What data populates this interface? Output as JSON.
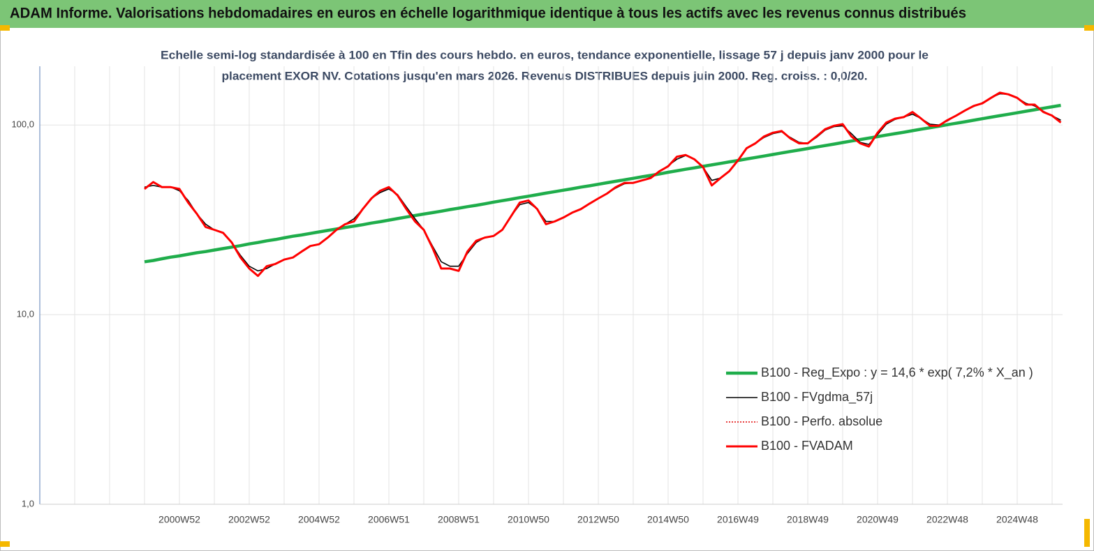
{
  "chart_data": {
    "type": "line",
    "title": "ADAM Informe. Valorisations hebdomadaires en euros en échelle logarithmique identique à tous les actifs avec les revenus connus distribués",
    "subtitle": [
      "Echelle semi-log standardisée à 100 en Tfin des cours hebdo. en euros, tendance exponentielle, lissage 57 j depuis janv 2000 pour le",
      "placement EXOR NV. Cotations jusqu'en mars 2026. Revenus DISTRIBUES depuis juin 2000. Reg. croiss. : 0,0/20."
    ],
    "categories": [
      null,
      null,
      null,
      null,
      "2000W52",
      null,
      null,
      null,
      null,
      null,
      null,
      null,
      "2002W52",
      null,
      null,
      null,
      null,
      null,
      null,
      null,
      "2004W52",
      null,
      null,
      null,
      null,
      null,
      null,
      null,
      "2006W51",
      null,
      null,
      null,
      null,
      null,
      null,
      null,
      "2008W51",
      null,
      null,
      null,
      null,
      null,
      null,
      null,
      "2010W50",
      null,
      null,
      null,
      null,
      null,
      null,
      null,
      "2012W50",
      null,
      null,
      null,
      null,
      null,
      null,
      null,
      "2014W50",
      null,
      null,
      null,
      null,
      null,
      null,
      null,
      "2016W49",
      null,
      null,
      null,
      null,
      null,
      null,
      null,
      "2018W49",
      null,
      null,
      null,
      null,
      null,
      null,
      null,
      "2020W49",
      null,
      null,
      null,
      null,
      null,
      null,
      null,
      "2022W48",
      null,
      null,
      null,
      null,
      null,
      null,
      null,
      "2024W48",
      null,
      null,
      null,
      null,
      null
    ],
    "log_scale": true,
    "grid": true,
    "legend": "right",
    "ylim": [
      1,
      204
    ],
    "yticks": [
      {
        "value": 1,
        "label": "1,0"
      },
      {
        "value": 10,
        "label": "10,0"
      },
      {
        "value": 100,
        "label": "100,0"
      }
    ],
    "series": [
      {
        "name": "B100 - Reg_Expo : y = 14,6 *  exp( 7,2% *  X_an )",
        "color": "#1fad4b",
        "style": "thick",
        "values": [
          19.0,
          19.3,
          19.7,
          20.1,
          20.4,
          20.8,
          21.2,
          21.5,
          21.9,
          22.3,
          22.7,
          23.1,
          23.6,
          24.0,
          24.5,
          24.9,
          25.4,
          25.9,
          26.3,
          26.8,
          27.3,
          27.8,
          28.3,
          28.8,
          29.3,
          29.8,
          30.4,
          30.9,
          31.5,
          32.1,
          32.7,
          33.3,
          33.9,
          34.5,
          35.1,
          35.8,
          36.4,
          37.1,
          37.7,
          38.4,
          39.2,
          39.9,
          40.6,
          41.4,
          42.1,
          42.9,
          43.7,
          44.5,
          45.3,
          46.1,
          47.0,
          47.8,
          48.7,
          49.6,
          50.5,
          51.4,
          52.3,
          53.3,
          54.2,
          55.2,
          56.3,
          57.3,
          58.4,
          59.4,
          60.5,
          61.6,
          62.7,
          63.9,
          65.0,
          66.2,
          67.4,
          68.6,
          69.9,
          71.2,
          72.5,
          73.8,
          75.1,
          76.5,
          77.9,
          79.3,
          80.8,
          82.3,
          83.8,
          85.3,
          86.8,
          88.4,
          90.0,
          91.6,
          93.3,
          95.0,
          96.7,
          98.5,
          100.3,
          102.1,
          104.0,
          105.9,
          107.9,
          109.9,
          111.9,
          113.9,
          116.0,
          118.1,
          120.3,
          122.5,
          124.7,
          127.0
        ]
      },
      {
        "name": "B100 - FVgdma_57j",
        "color": "#000000",
        "style": "thin",
        "values": [
          47,
          48,
          47,
          47,
          45,
          40,
          34,
          30,
          28,
          27,
          24,
          20.5,
          18,
          17,
          17.5,
          18.5,
          19.5,
          20,
          21.5,
          23,
          23.5,
          25.5,
          28,
          30,
          32,
          36,
          41,
          44,
          46,
          43,
          37,
          32,
          28,
          23,
          19,
          18,
          18,
          21,
          24,
          25.5,
          26,
          28,
          33,
          38,
          39,
          36,
          31,
          31,
          32.5,
          34.5,
          36,
          38.5,
          41,
          43.5,
          46.5,
          49,
          49.5,
          51,
          53,
          57,
          61,
          66,
          69,
          66,
          60,
          51,
          52.5,
          57,
          65,
          75,
          80,
          86,
          90,
          92,
          86,
          81,
          80,
          86,
          94,
          98,
          99,
          90,
          81,
          79,
          89,
          101,
          107,
          110,
          114,
          108,
          101,
          100,
          105,
          112,
          119,
          125,
          131,
          139,
          146,
          145,
          139,
          130,
          126,
          118,
          112,
          106
        ]
      },
      {
        "name": "B100 - Perfo. absolue",
        "color": "#e00000",
        "style": "dotted",
        "values": [
          46,
          50,
          47,
          47,
          46,
          39,
          34,
          29,
          28,
          27,
          24,
          20,
          17.5,
          16,
          18,
          18.5,
          19.5,
          20,
          21.5,
          23,
          23.5,
          25.5,
          28,
          30,
          31,
          36,
          41,
          45,
          47,
          42.5,
          36,
          31,
          28,
          22.5,
          17.5,
          17.5,
          17,
          21.5,
          24.5,
          25.5,
          26,
          28,
          33,
          39,
          40,
          36,
          30,
          31,
          32.5,
          34.5,
          36,
          38.5,
          41,
          43.5,
          47,
          49.5,
          49.5,
          51,
          52.5,
          57,
          60.5,
          68,
          69.5,
          66,
          60,
          48,
          52.5,
          57,
          65,
          75.5,
          80,
          87,
          91,
          93,
          85,
          80,
          80,
          87,
          95,
          99,
          101,
          87,
          80,
          77,
          91,
          103,
          108,
          110,
          117,
          108,
          99,
          99,
          106,
          112,
          119,
          126,
          130,
          139,
          148,
          145,
          139,
          128,
          128,
          117,
          112,
          103
        ]
      },
      {
        "name": "B100 - FVADAM",
        "color": "#ff0000",
        "style": "thick-red",
        "values": [
          46,
          50,
          47,
          47,
          46,
          39,
          34,
          29,
          28,
          27,
          24,
          20,
          17.5,
          16,
          18,
          18.5,
          19.5,
          20,
          21.5,
          23,
          23.5,
          25.5,
          28,
          30,
          31,
          36,
          41,
          45,
          47,
          42.5,
          36,
          31,
          28,
          22.5,
          17.5,
          17.5,
          17,
          21.5,
          24.5,
          25.5,
          26,
          28,
          33,
          39,
          40,
          36,
          30,
          31,
          32.5,
          34.5,
          36,
          38.5,
          41,
          43.5,
          47,
          49.5,
          49.5,
          51,
          52.5,
          57,
          60.5,
          68,
          69.5,
          66,
          60,
          48,
          52.5,
          57,
          65,
          75.5,
          80,
          87,
          91,
          93,
          85,
          80,
          80,
          87,
          95,
          99,
          101,
          87,
          80,
          77,
          91,
          103,
          108,
          110,
          117,
          108,
          99,
          99,
          106,
          112,
          119,
          126,
          130,
          139,
          148,
          145,
          139,
          128,
          128,
          117,
          112,
          103
        ]
      }
    ]
  }
}
